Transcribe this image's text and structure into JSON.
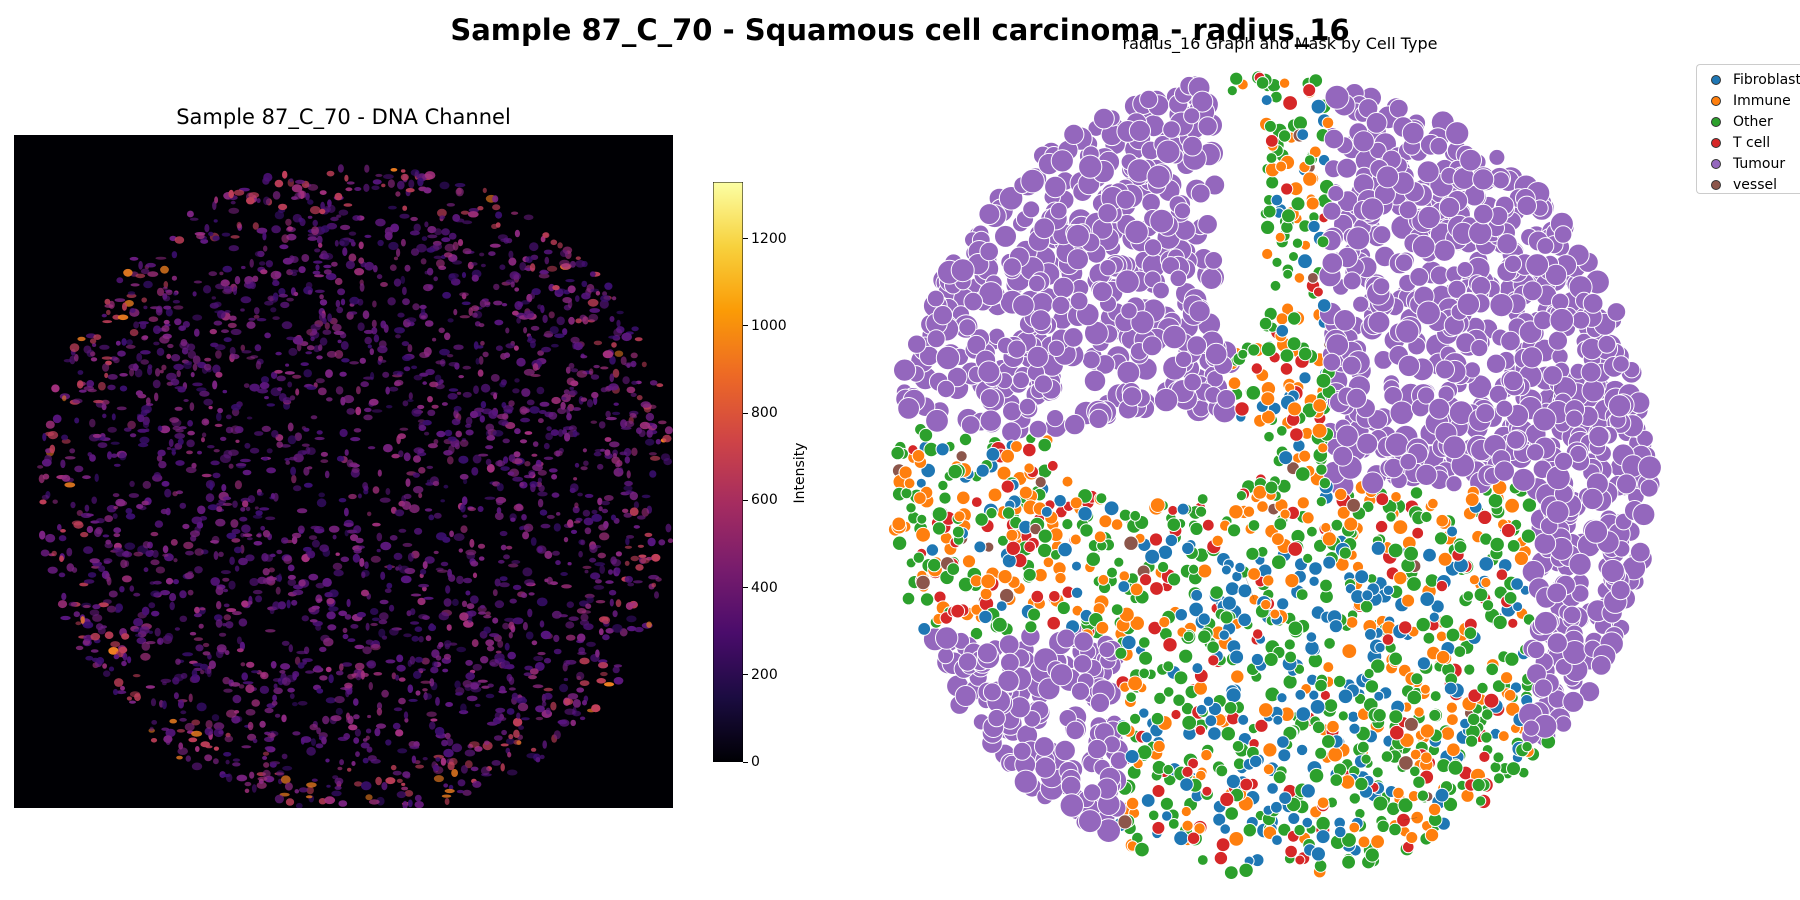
{
  "figure": {
    "suptitle": "Sample 87_C_70 - Squamous cell carcinoma - radius_16"
  },
  "left_panel": {
    "title": "Sample 87_C_70 - DNA Channel",
    "background": "#000004",
    "colormap": "inferno",
    "colorbar": {
      "label": "Intensity",
      "min": 0,
      "max": 1330,
      "ticks": [
        "0",
        "200",
        "400",
        "600",
        "800",
        "1000",
        "1200"
      ],
      "colors": [
        "#000004",
        "#1b0c41",
        "#4a0c6b",
        "#781c6d",
        "#a52c60",
        "#cf4446",
        "#ed6925",
        "#fb9b06",
        "#f7d13d",
        "#fcffa4"
      ]
    }
  },
  "right_panel": {
    "title": "radius_16 Graph and Mask by Cell Type",
    "legend": [
      {
        "label": "Fibroblast",
        "color": "#1f77b4"
      },
      {
        "label": "Immune",
        "color": "#ff7f0e"
      },
      {
        "label": "Other",
        "color": "#2ca02c"
      },
      {
        "label": "T cell",
        "color": "#d62728"
      },
      {
        "label": "Tumour",
        "color": "#9467bd"
      },
      {
        "label": "vessel",
        "color": "#8c564b"
      }
    ]
  }
}
